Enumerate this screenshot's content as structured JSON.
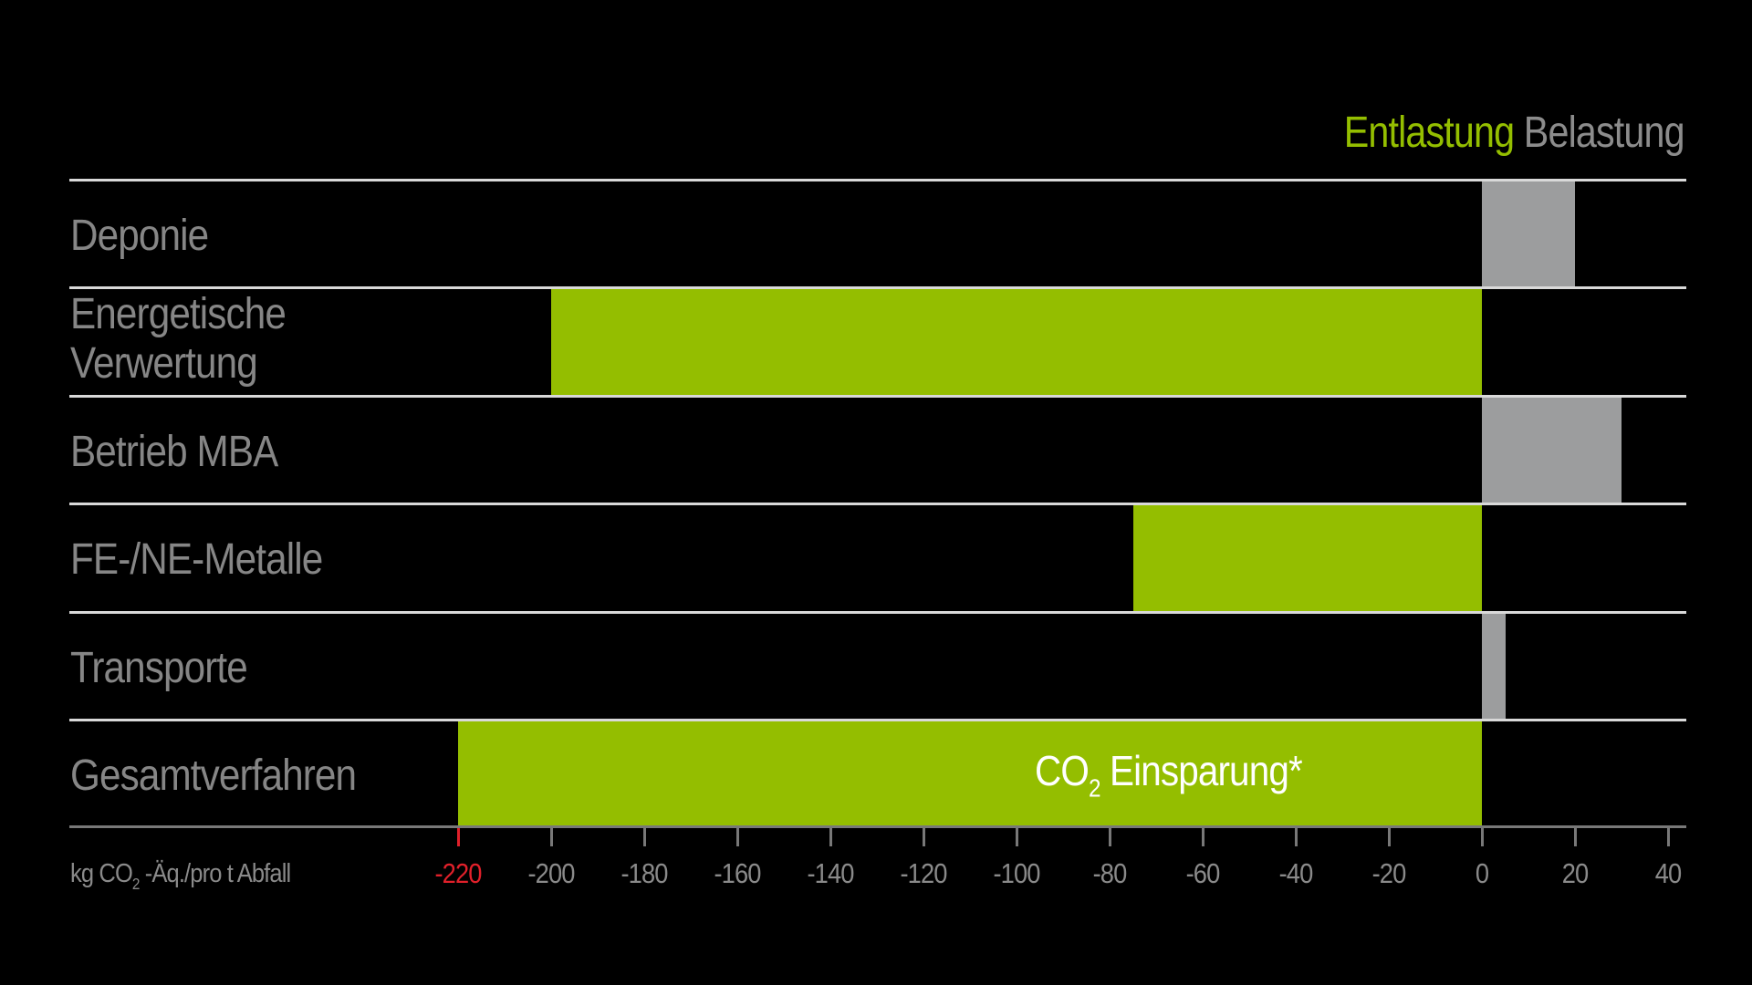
{
  "legend": {
    "positive_label": "Entlastung",
    "negative_label": "Belastung",
    "positive_color": "#94be00",
    "negative_color": "#9c9d9e"
  },
  "rows": [
    {
      "label_line1": "Deponie",
      "label_line2": "",
      "value": 20
    },
    {
      "label_line1": "Energetische",
      "label_line2": "Verwertung",
      "value": -200
    },
    {
      "label_line1": "Betrieb MBA",
      "label_line2": "",
      "value": 30
    },
    {
      "label_line1": "FE-/NE-Metalle",
      "label_line2": "",
      "value": -75
    },
    {
      "label_line1": "Transporte",
      "label_line2": "",
      "value": 5
    },
    {
      "label_line1": "Gesamtverfahren",
      "label_line2": "",
      "value": -220
    }
  ],
  "annotation": {
    "pre": "CO",
    "sub": "2",
    "post": " Einsparung*"
  },
  "axis": {
    "unit_pre": "kg CO",
    "unit_sub": "2",
    "unit_post": " -Äq./pro t Abfall",
    "ticks": [
      "-220",
      "-200",
      "-180",
      "-160",
      "-140",
      "-120",
      "-100",
      "-80",
      "-60",
      "-40",
      "-20",
      "0",
      "20",
      "40"
    ],
    "highlight_tick": "-220",
    "highlight_color": "#e0202a"
  },
  "chart_data": {
    "type": "bar",
    "orientation": "horizontal",
    "title": "",
    "categories": [
      "Deponie",
      "Energetische Verwertung",
      "Betrieb MBA",
      "FE-/NE-Metalle",
      "Transporte",
      "Gesamtverfahren"
    ],
    "values": [
      20,
      -200,
      30,
      -75,
      5,
      -220
    ],
    "xlabel": "kg CO2-Äq./pro t Abfall",
    "ylabel": "",
    "xlim": [
      -220,
      40
    ],
    "xticks": [
      -220,
      -200,
      -180,
      -160,
      -140,
      -120,
      -100,
      -80,
      -60,
      -40,
      -20,
      0,
      20,
      40
    ],
    "legend": [
      "Entlastung (negative, green)",
      "Belastung (positive, grey)"
    ],
    "legend_position": "top-right",
    "annotations": [
      "CO2 Einsparung* (on Gesamtverfahren bar)",
      "-220 highlighted in red"
    ],
    "grid": false
  }
}
